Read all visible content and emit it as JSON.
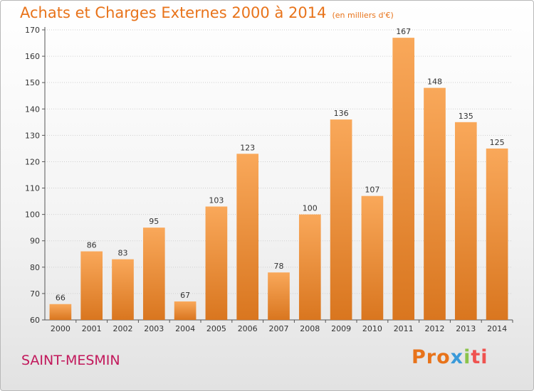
{
  "header": {
    "title": "Achats et Charges Externes 2000 à 2014",
    "subtitle": "(en milliers d'€)"
  },
  "footer": {
    "city": "SAINT-MESMIN",
    "logo": [
      "Pro",
      "x",
      "i",
      "ti"
    ]
  },
  "colors": {
    "title": "#e8731a",
    "city": "#c2185b",
    "bar_light": "#f9a85a",
    "bar_dark": "#d9761f"
  },
  "chart_data": {
    "type": "bar",
    "title": "Achats et Charges Externes 2000 à 2014",
    "subtitle": "(en milliers d'€)",
    "xlabel": "",
    "ylabel": "",
    "categories": [
      "2000",
      "2001",
      "2002",
      "2003",
      "2004",
      "2005",
      "2006",
      "2007",
      "2008",
      "2009",
      "2010",
      "2011",
      "2012",
      "2013",
      "2014"
    ],
    "values": [
      66,
      86,
      83,
      95,
      67,
      103,
      123,
      78,
      100,
      136,
      107,
      167,
      148,
      135,
      125
    ],
    "ylim": [
      60,
      170
    ],
    "yticks": [
      60,
      70,
      80,
      90,
      100,
      110,
      120,
      130,
      140,
      150,
      160,
      170
    ],
    "grid": true,
    "data_labels": true
  }
}
